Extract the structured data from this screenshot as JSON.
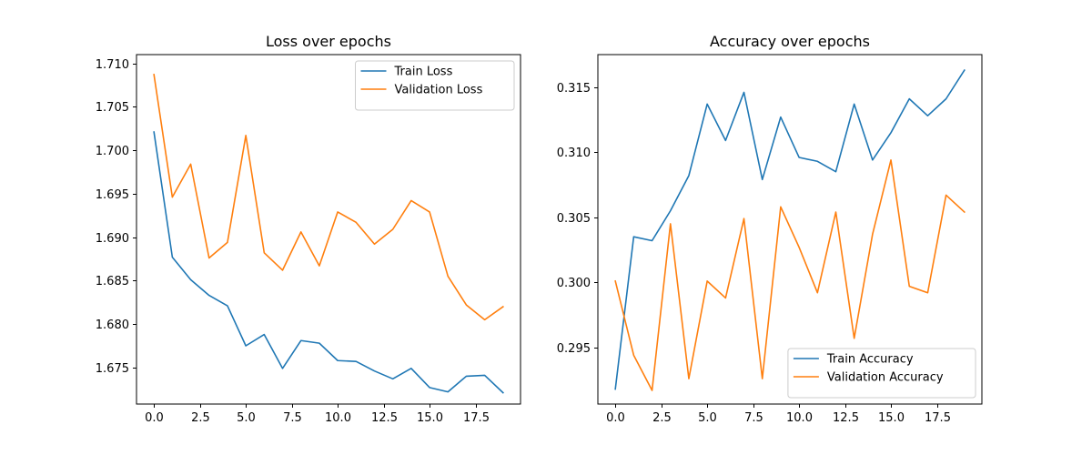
{
  "chart_data": [
    {
      "type": "line",
      "title": "Loss over epochs",
      "xlabel": "",
      "ylabel": "",
      "xlim": [
        -0.95,
        19.95
      ],
      "ylim": [
        1.6708,
        1.711
      ],
      "xticks": [
        0.0,
        2.5,
        5.0,
        7.5,
        10.0,
        12.5,
        15.0,
        17.5
      ],
      "xtick_labels": [
        "0.0",
        "2.5",
        "5.0",
        "7.5",
        "10.0",
        "12.5",
        "15.0",
        "17.5"
      ],
      "yticks": [
        1.675,
        1.68,
        1.685,
        1.69,
        1.695,
        1.7,
        1.705,
        1.71
      ],
      "ytick_labels": [
        "1.675",
        "1.680",
        "1.685",
        "1.690",
        "1.695",
        "1.700",
        "1.705",
        "1.710"
      ],
      "grid": false,
      "legend_position": "top-right",
      "series": [
        {
          "name": "Train Loss",
          "color": "#1f77b4",
          "x": [
            0,
            1,
            2,
            3,
            4,
            5,
            6,
            7,
            8,
            9,
            10,
            11,
            12,
            13,
            14,
            15,
            16,
            17,
            18,
            19
          ],
          "values": [
            1.7021,
            1.6877,
            1.6851,
            1.6833,
            1.6821,
            1.6775,
            1.6788,
            1.6749,
            1.6781,
            1.6778,
            1.6758,
            1.6757,
            1.6746,
            1.6737,
            1.6749,
            1.6727,
            1.6722,
            1.674,
            1.6741,
            1.6721
          ]
        },
        {
          "name": "Validation Loss",
          "color": "#ff7f0e",
          "x": [
            0,
            1,
            2,
            3,
            4,
            5,
            6,
            7,
            8,
            9,
            10,
            11,
            12,
            13,
            14,
            15,
            16,
            17,
            18,
            19
          ],
          "values": [
            1.7087,
            1.6946,
            1.6984,
            1.6876,
            1.6894,
            1.7017,
            1.6882,
            1.6862,
            1.6906,
            1.6867,
            1.6929,
            1.6917,
            1.6892,
            1.6909,
            1.6942,
            1.6929,
            1.6855,
            1.6822,
            1.6805,
            1.682
          ]
        }
      ]
    },
    {
      "type": "line",
      "title": "Accuracy over epochs",
      "xlabel": "",
      "ylabel": "",
      "xlim": [
        -0.95,
        19.95
      ],
      "ylim": [
        0.29065,
        0.3175
      ],
      "xticks": [
        0.0,
        2.5,
        5.0,
        7.5,
        10.0,
        12.5,
        15.0,
        17.5
      ],
      "xtick_labels": [
        "0.0",
        "2.5",
        "5.0",
        "7.5",
        "10.0",
        "12.5",
        "15.0",
        "17.5"
      ],
      "yticks": [
        0.295,
        0.3,
        0.305,
        0.31,
        0.315
      ],
      "ytick_labels": [
        "0.295",
        "0.300",
        "0.305",
        "0.310",
        "0.315"
      ],
      "grid": false,
      "legend_position": "bottom-right",
      "series": [
        {
          "name": "Train Accuracy",
          "color": "#1f77b4",
          "x": [
            0,
            1,
            2,
            3,
            4,
            5,
            6,
            7,
            8,
            9,
            10,
            11,
            12,
            13,
            14,
            15,
            16,
            17,
            18,
            19
          ],
          "values": [
            0.2918,
            0.3035,
            0.3032,
            0.3055,
            0.3082,
            0.3137,
            0.3109,
            0.3146,
            0.3079,
            0.3127,
            0.3096,
            0.3093,
            0.3085,
            0.3137,
            0.3094,
            0.3115,
            0.3141,
            0.3128,
            0.3141,
            0.3163
          ]
        },
        {
          "name": "Validation Accuracy",
          "color": "#ff7f0e",
          "x": [
            0,
            1,
            2,
            3,
            4,
            5,
            6,
            7,
            8,
            9,
            10,
            11,
            12,
            13,
            14,
            15,
            16,
            17,
            18,
            19
          ],
          "values": [
            0.3001,
            0.2944,
            0.2917,
            0.3045,
            0.2926,
            0.3001,
            0.2988,
            0.3049,
            0.2926,
            0.3058,
            0.3027,
            0.2992,
            0.3054,
            0.2957,
            0.3037,
            0.3094,
            0.2997,
            0.2992,
            0.3067,
            0.3054
          ]
        }
      ]
    }
  ]
}
